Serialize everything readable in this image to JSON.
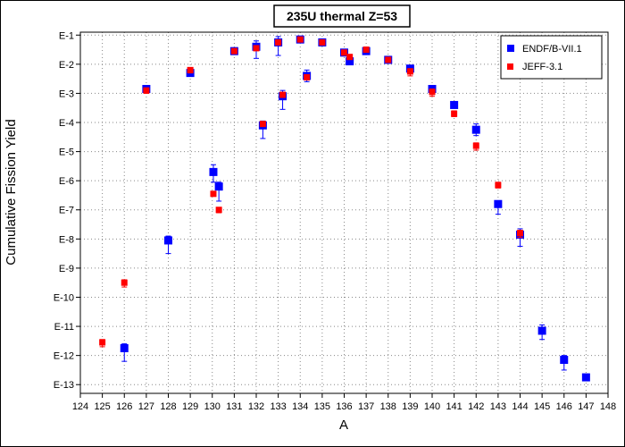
{
  "chart_data": {
    "type": "scatter",
    "title": "235U thermal Z=53",
    "xlabel": "A",
    "ylabel": "Cumulative Fission Yield",
    "xlim": [
      124,
      148
    ],
    "ylim_log10": [
      -13.3,
      -0.9
    ],
    "y_scale": "log",
    "grid": true,
    "legend": "top-right",
    "x_ticks": [
      124,
      125,
      126,
      127,
      128,
      129,
      130,
      131,
      132,
      133,
      134,
      135,
      136,
      137,
      138,
      139,
      140,
      141,
      142,
      143,
      144,
      145,
      146,
      147,
      148
    ],
    "y_ticks": [
      {
        "label": "E-1",
        "exp": -1
      },
      {
        "label": "E-2",
        "exp": -2
      },
      {
        "label": "E-3",
        "exp": -3
      },
      {
        "label": "E-4",
        "exp": -4
      },
      {
        "label": "E-5",
        "exp": -5
      },
      {
        "label": "E-6",
        "exp": -6
      },
      {
        "label": "E-7",
        "exp": -7
      },
      {
        "label": "E-8",
        "exp": -8
      },
      {
        "label": "E-9",
        "exp": -9
      },
      {
        "label": "E-10",
        "exp": -10
      },
      {
        "label": "E-11",
        "exp": -11
      },
      {
        "label": "E-12",
        "exp": -12
      },
      {
        "label": "E-13",
        "exp": -13
      }
    ],
    "series": [
      {
        "name": "ENDF/B-VII.1",
        "color": "#0000ff",
        "marker": "square",
        "points": [
          {
            "x": 126,
            "y": -11.75,
            "err": [
              0.45,
              0.15
            ]
          },
          {
            "x": 127,
            "y": -2.85,
            "err": [
              0.05,
              0.05
            ]
          },
          {
            "x": 128,
            "y": -8.05,
            "err": [
              0.45,
              0.15
            ]
          },
          {
            "x": 129,
            "y": -2.3,
            "err": [
              0.05,
              0.05
            ]
          },
          {
            "x": 130.05,
            "y": -5.7,
            "err": [
              0.35,
              0.25
            ]
          },
          {
            "x": 130.3,
            "y": -6.2,
            "err": [
              0.5,
              0.15
            ]
          },
          {
            "x": 131,
            "y": -1.55,
            "err": [
              0.05,
              0.05
            ]
          },
          {
            "x": 132,
            "y": -1.4,
            "err": [
              0.4,
              0.2
            ]
          },
          {
            "x": 132.3,
            "y": -4.1,
            "err": [
              0.45,
              0.15
            ]
          },
          {
            "x": 133,
            "y": -1.25,
            "err": [
              0.45,
              0.2
            ]
          },
          {
            "x": 133.2,
            "y": -3.1,
            "err": [
              0.45,
              0.2
            ]
          },
          {
            "x": 134,
            "y": -1.15,
            "err": [
              0.05,
              0.05
            ]
          },
          {
            "x": 134.3,
            "y": -2.4,
            "err": [
              0.2,
              0.2
            ]
          },
          {
            "x": 135,
            "y": -1.25,
            "err": [
              0.05,
              0.05
            ]
          },
          {
            "x": 136,
            "y": -1.6,
            "err": [
              0.1,
              0.1
            ]
          },
          {
            "x": 136.25,
            "y": -1.9,
            "err": [
              0.05,
              0.05
            ]
          },
          {
            "x": 137,
            "y": -1.55,
            "err": [
              0.05,
              0.05
            ]
          },
          {
            "x": 138,
            "y": -1.85,
            "err": [
              0.05,
              0.05
            ]
          },
          {
            "x": 139,
            "y": -2.15,
            "err": [
              0.1,
              0.1
            ]
          },
          {
            "x": 140,
            "y": -2.85,
            "err": [
              0.1,
              0.1
            ]
          },
          {
            "x": 141,
            "y": -3.4,
            "err": [
              0.05,
              0.05
            ]
          },
          {
            "x": 142,
            "y": -4.25,
            "err": [
              0.2,
              0.2
            ]
          },
          {
            "x": 143,
            "y": -6.8,
            "err": [
              0.35,
              0.1
            ]
          },
          {
            "x": 144,
            "y": -7.85,
            "err": [
              0.4,
              0.2
            ]
          },
          {
            "x": 145,
            "y": -11.15,
            "err": [
              0.3,
              0.2
            ]
          },
          {
            "x": 146,
            "y": -12.15,
            "err": [
              0.35,
              0.15
            ]
          },
          {
            "x": 147,
            "y": -12.75,
            "err": [
              0.05,
              0.05
            ]
          }
        ]
      },
      {
        "name": "JEFF-3.1",
        "color": "#ff0000",
        "marker": "square",
        "points": [
          {
            "x": 125,
            "y": -11.55,
            "err": [
              0.15,
              0.1
            ]
          },
          {
            "x": 126,
            "y": -9.5,
            "err": [
              0.15,
              0.1
            ]
          },
          {
            "x": 127,
            "y": -2.9,
            "err": [
              0.1,
              0.05
            ]
          },
          {
            "x": 129,
            "y": -2.2,
            "err": [
              0.1,
              0.05
            ]
          },
          {
            "x": 130.05,
            "y": -6.45,
            "err": [
              0.05,
              0.05
            ]
          },
          {
            "x": 130.3,
            "y": -7.0,
            "err": [
              0.1,
              0.05
            ]
          },
          {
            "x": 131,
            "y": -1.55,
            "err": [
              0.05,
              0.05
            ]
          },
          {
            "x": 132,
            "y": -1.45,
            "err": [
              0.05,
              0.05
            ]
          },
          {
            "x": 132.3,
            "y": -4.05,
            "err": [
              0.05,
              0.05
            ]
          },
          {
            "x": 133,
            "y": -1.25,
            "err": [
              0.05,
              0.05
            ]
          },
          {
            "x": 133.2,
            "y": -3.05,
            "err": [
              0.05,
              0.05
            ]
          },
          {
            "x": 134,
            "y": -1.15,
            "err": [
              0.05,
              0.05
            ]
          },
          {
            "x": 134.3,
            "y": -2.45,
            "err": [
              0.05,
              0.05
            ]
          },
          {
            "x": 135,
            "y": -1.25,
            "err": [
              0.05,
              0.05
            ]
          },
          {
            "x": 136,
            "y": -1.6,
            "err": [
              0.05,
              0.05
            ]
          },
          {
            "x": 136.25,
            "y": -1.75,
            "err": [
              0.05,
              0.05
            ]
          },
          {
            "x": 137,
            "y": -1.5,
            "err": [
              0.05,
              0.05
            ]
          },
          {
            "x": 138,
            "y": -1.85,
            "err": [
              0.05,
              0.05
            ]
          },
          {
            "x": 139,
            "y": -2.25,
            "err": [
              0.15,
              0.1
            ]
          },
          {
            "x": 140,
            "y": -2.95,
            "err": [
              0.15,
              0.1
            ]
          },
          {
            "x": 141,
            "y": -3.7,
            "err": [
              0.1,
              0.1
            ]
          },
          {
            "x": 142,
            "y": -4.8,
            "err": [
              0.15,
              0.1
            ]
          },
          {
            "x": 143,
            "y": -6.15,
            "err": [
              0.1,
              0.1
            ]
          },
          {
            "x": 144,
            "y": -7.8,
            "err": [
              0.15,
              0.1
            ]
          }
        ]
      }
    ]
  }
}
